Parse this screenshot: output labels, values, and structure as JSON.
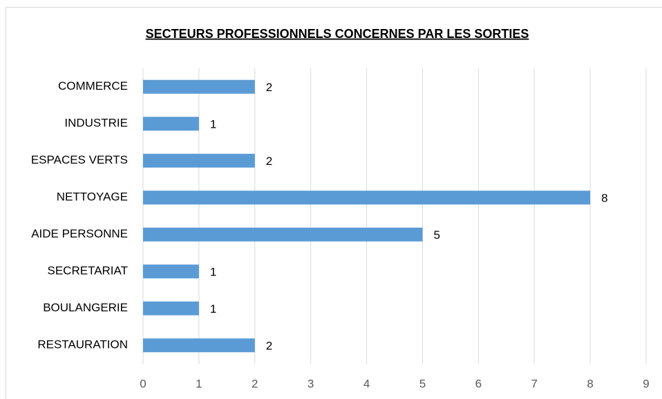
{
  "chart_data": {
    "type": "bar",
    "orientation": "horizontal",
    "title": "SECTEURS PROFESSIONNELS CONCERNES PAR LES SORTIES",
    "categories": [
      "COMMERCE",
      "INDUSTRIE",
      "ESPACES VERTS",
      "NETTOYAGE",
      "AIDE PERSONNE",
      "SECRETARIAT",
      "BOULANGERIE",
      "RESTAURATION"
    ],
    "values": [
      2,
      1,
      2,
      8,
      5,
      1,
      1,
      2
    ],
    "color": "#5b9bd5",
    "xlim": [
      0,
      9
    ],
    "xticks": [
      0,
      1,
      2,
      3,
      4,
      5,
      6,
      7,
      8,
      9
    ],
    "grid": true
  }
}
